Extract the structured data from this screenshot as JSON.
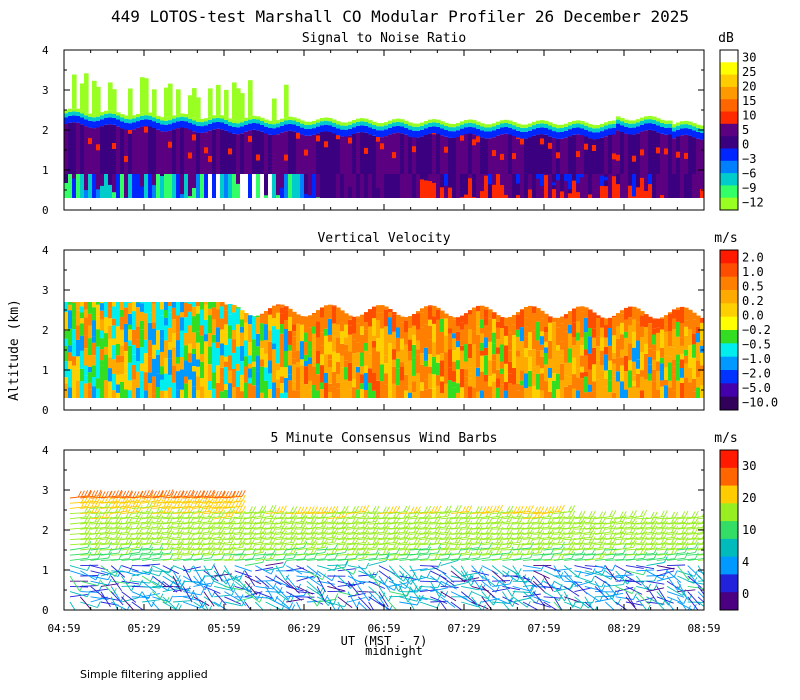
{
  "figure": {
    "title": "449 LOTOS-test Marshall CO Modular Profiler 26 December 2025",
    "ylabel": "Altitude (km)",
    "xlabel": "UT (MST - 7)",
    "midnight_label": "midnight",
    "footer_note": "Simple filtering applied",
    "x_ticks": [
      "04:59",
      "05:29",
      "05:59",
      "06:29",
      "06:59",
      "07:29",
      "07:59",
      "08:29",
      "08:59"
    ]
  },
  "chart_data": [
    {
      "type": "heatmap",
      "title": "Signal to Noise Ratio",
      "unit": "dB",
      "ylim": [
        0,
        4
      ],
      "y_ticks": [
        "0",
        "1",
        "2",
        "3",
        "4"
      ],
      "colorbar": {
        "labels": [
          "30",
          "25",
          "20",
          "15",
          "10",
          "5",
          "0",
          "−3",
          "−6",
          "−9",
          "−12"
        ],
        "colors": [
          "#ffffff",
          "#ffff00",
          "#ffcc00",
          "#ff9900",
          "#ff6600",
          "#ff2a00",
          "#5a0080",
          "#3a0080",
          "#0026ff",
          "#0080ff",
          "#00cccc",
          "#33ff66",
          "#99ff22"
        ]
      }
    },
    {
      "type": "heatmap",
      "title": "Vertical Velocity",
      "unit": "m/s",
      "ylim": [
        0,
        4
      ],
      "y_ticks": [
        "0",
        "1",
        "2",
        "3",
        "4"
      ],
      "colorbar": {
        "labels": [
          "2.0",
          "1.0",
          "0.5",
          "0.2",
          "0.0",
          "−0.2",
          "−0.5",
          "−1.0",
          "−2.0",
          "−5.0",
          "−10.0"
        ],
        "colors": [
          "#ff1a00",
          "#ff4d00",
          "#ff8000",
          "#ffaa00",
          "#ffd000",
          "#ffff00",
          "#33dd22",
          "#00eeee",
          "#0099ff",
          "#0033ff",
          "#4400aa",
          "#30005a"
        ]
      }
    },
    {
      "type": "wind_barbs",
      "title": "5 Minute Consensus Wind Barbs",
      "unit": "m/s",
      "ylim": [
        0,
        4
      ],
      "y_ticks": [
        "0",
        "1",
        "2",
        "3",
        "4"
      ],
      "colorbar": {
        "labels": [
          "30",
          "20",
          "10",
          "4",
          "0"
        ],
        "colors": [
          "#ff1a00",
          "#ff6600",
          "#ffcc00",
          "#99ee22",
          "#33dd66",
          "#00bbbb",
          "#0099ff",
          "#2222dd",
          "#4a0080"
        ]
      }
    }
  ]
}
